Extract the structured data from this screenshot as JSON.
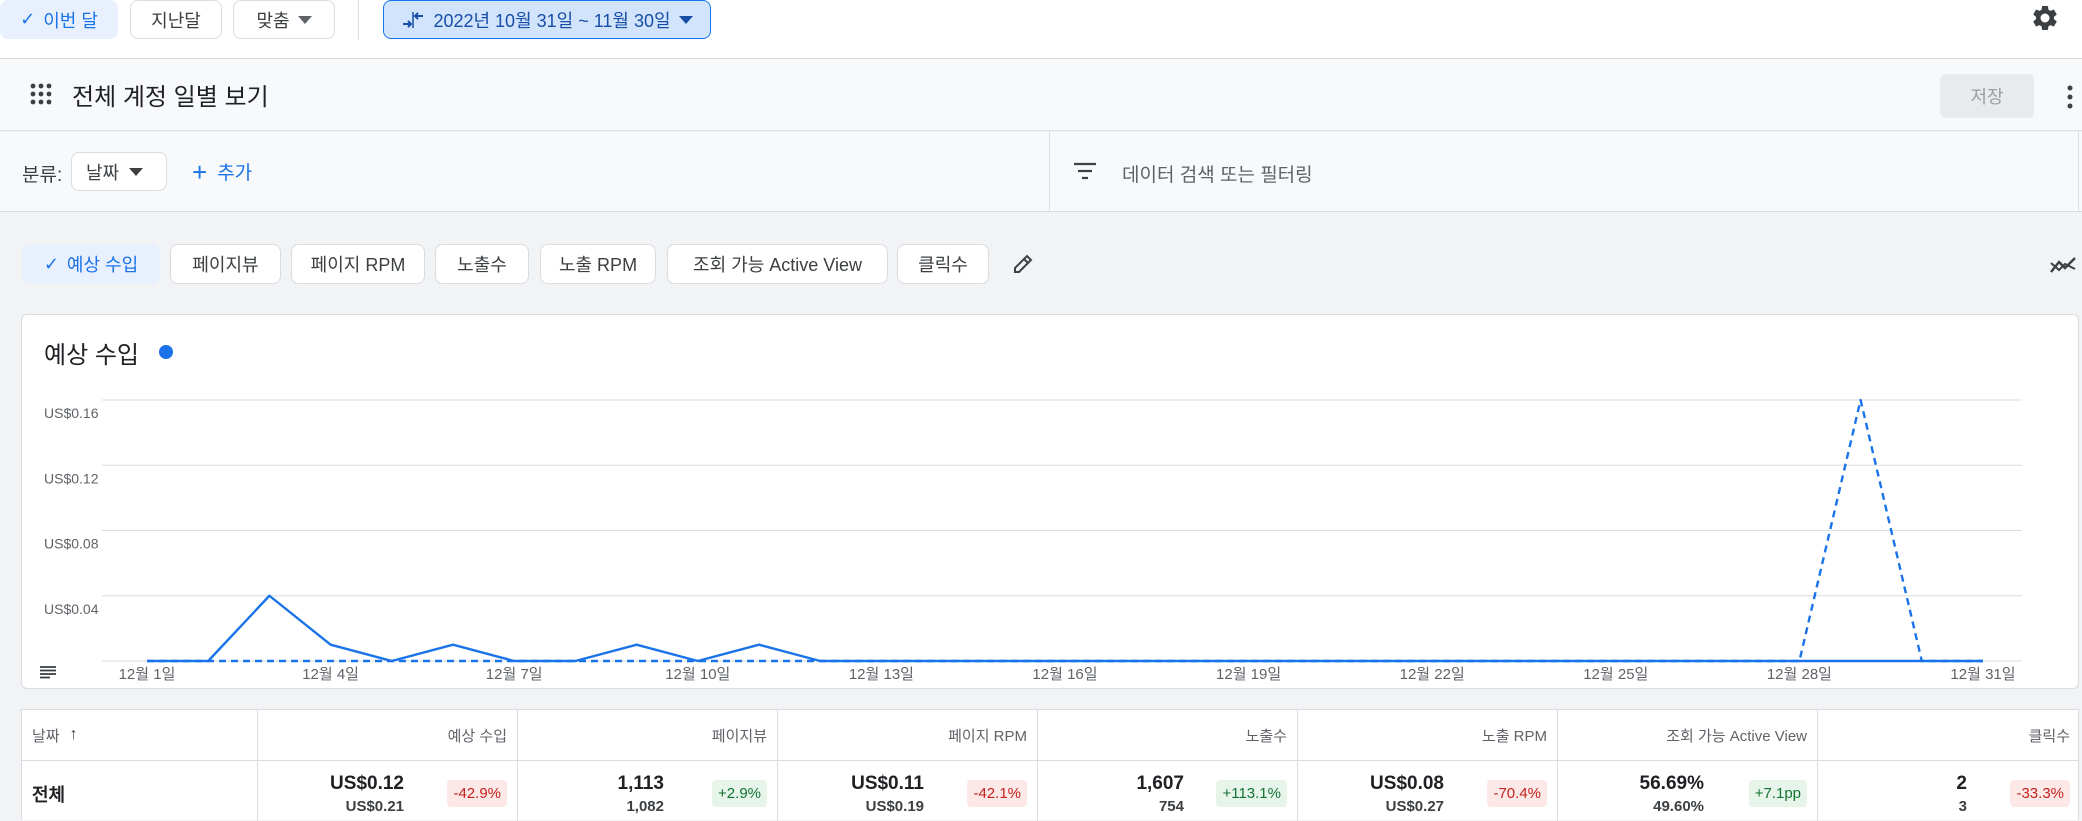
{
  "toolbar": {
    "this_month": "이번 달",
    "last_month": "지난달",
    "custom": "맞춤",
    "date_range": "2022년 10월 31일 ~ 11월 30일"
  },
  "report": {
    "title": "전체 계정 일별 보기",
    "save_label": "저장"
  },
  "filters": {
    "breakdown_label": "분류:",
    "breakdown_value": "날짜",
    "add_label": "추가",
    "search_placeholder": "데이터 검색 또는 필터링"
  },
  "metric_chips": [
    {
      "label": "예상 수입",
      "selected": true
    },
    {
      "label": "페이지뷰",
      "selected": false
    },
    {
      "label": "페이지 RPM",
      "selected": false
    },
    {
      "label": "노출수",
      "selected": false
    },
    {
      "label": "노출 RPM",
      "selected": false
    },
    {
      "label": "조회 가능 Active View",
      "selected": false
    },
    {
      "label": "클릭수",
      "selected": false
    }
  ],
  "chart_title": "예상 수입",
  "chart_data": {
    "type": "line",
    "title": "예상 수입",
    "y_ticks": [
      "US$0.04",
      "US$0.08",
      "US$0.12",
      "US$0.16"
    ],
    "ylim": [
      0,
      0.16
    ],
    "x_tick_labels": [
      "12월 1일",
      "12월 4일",
      "12월 7일",
      "12월 10일",
      "12월 13일",
      "12월 16일",
      "12월 19일",
      "12월 22일",
      "12월 25일",
      "12월 28일",
      "12월 31일"
    ],
    "grid": true,
    "series": [
      {
        "style": "solid",
        "color": "#1a73e8",
        "x": [
          1,
          2,
          3,
          4,
          5,
          6,
          7,
          8,
          9,
          10,
          11,
          12,
          13,
          14,
          15,
          16,
          17,
          18,
          19,
          20,
          21,
          22,
          23,
          24,
          25,
          26,
          27,
          28,
          29,
          30,
          31
        ],
        "values": [
          0,
          0,
          0.04,
          0.01,
          0,
          0.01,
          0,
          0,
          0.01,
          0,
          0.01,
          0,
          0,
          0,
          0,
          0,
          0,
          0,
          0,
          0,
          0,
          0,
          0,
          0,
          0,
          0,
          0,
          0,
          0,
          0,
          0
        ]
      },
      {
        "style": "dashed",
        "color": "#1a73e8",
        "x": [
          1,
          2,
          3,
          4,
          5,
          6,
          7,
          8,
          9,
          10,
          11,
          12,
          13,
          14,
          15,
          16,
          17,
          18,
          19,
          20,
          21,
          22,
          23,
          24,
          25,
          26,
          27,
          28,
          29,
          30,
          31
        ],
        "values": [
          0,
          0,
          0,
          0,
          0,
          0,
          0,
          0,
          0,
          0,
          0,
          0,
          0,
          0,
          0,
          0,
          0,
          0,
          0,
          0,
          0,
          0,
          0,
          0,
          0,
          0,
          0,
          0,
          0.16,
          0,
          0
        ]
      }
    ]
  },
  "table": {
    "headers": [
      "날짜",
      "예상 수입",
      "페이지뷰",
      "페이지 RPM",
      "노출수",
      "노출 RPM",
      "조회 가능 Active View",
      "클릭수"
    ],
    "total_row": {
      "label": "전체",
      "cells": [
        {
          "value": "US$0.12",
          "prev": "US$0.21",
          "change": "-42.9%",
          "dir": "neg"
        },
        {
          "value": "1,113",
          "prev": "1,082",
          "change": "+2.9%",
          "dir": "pos"
        },
        {
          "value": "US$0.11",
          "prev": "US$0.19",
          "change": "-42.1%",
          "dir": "neg"
        },
        {
          "value": "1,607",
          "prev": "754",
          "change": "+113.1%",
          "dir": "pos"
        },
        {
          "value": "US$0.08",
          "prev": "US$0.27",
          "change": "-70.4%",
          "dir": "neg"
        },
        {
          "value": "56.69%",
          "prev": "49.60%",
          "change": "+7.1pp",
          "dir": "pos"
        },
        {
          "value": "2",
          "prev": "3",
          "change": "-33.3%",
          "dir": "neg"
        }
      ]
    }
  }
}
